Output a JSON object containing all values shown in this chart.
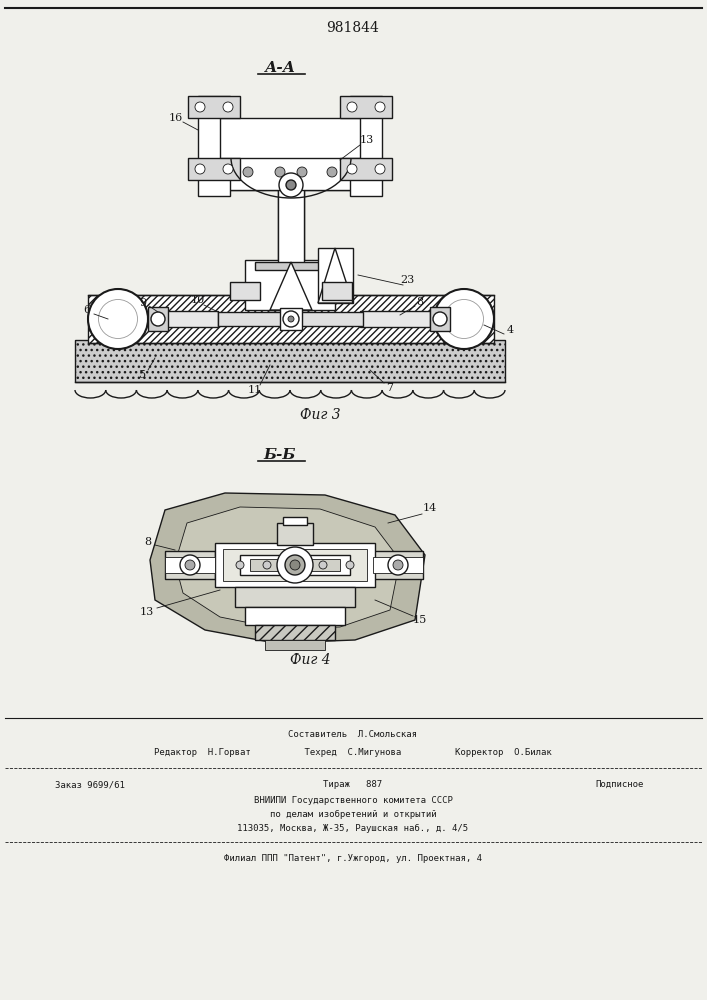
{
  "patent_number": "981844",
  "bg_color": "#f0f0eb",
  "line_color": "#1a1a1a",
  "fig3_label": "А-А",
  "fig4_label": "Б-Б",
  "fig3_caption": "Фиг 3",
  "fig4_caption": "Фиг 4",
  "footer_line1": "Составитель  Л.Смольская",
  "footer_line2": "Редактор  Н.Горват          Техред  С.Мигунова          Корректор  О.Билак",
  "footer_line3a": "Заказ 9699/61",
  "footer_line3b": "Тираж   887",
  "footer_line3c": "Подписное",
  "footer_line4": "ВНИИПИ Государственного комитета СССР",
  "footer_line5": "по делам изобретений и открытий",
  "footer_line6": "113035, Москва, Ж-35, Раушская наб., д. 4/5",
  "footer_line7": "Филиал ППП \"Патент\", г.Ужгород, ул. Проектная, 4"
}
